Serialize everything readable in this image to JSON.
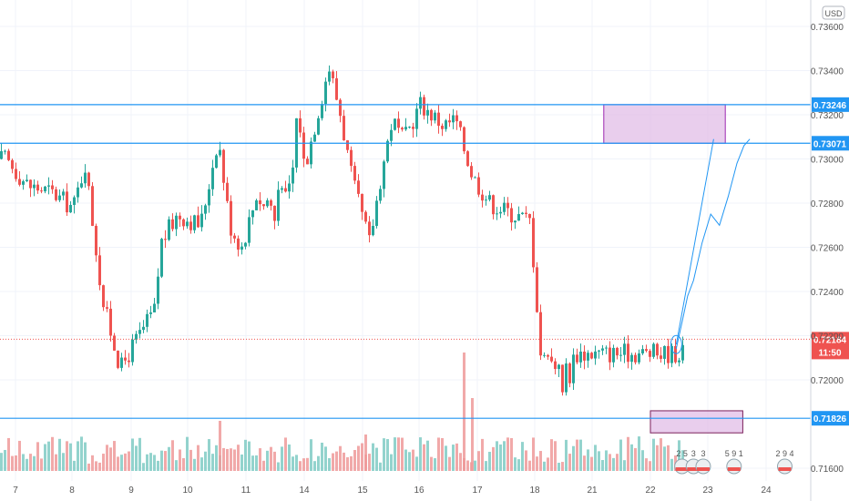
{
  "currency_badge": "USD",
  "chart_data": {
    "type": "candlestick",
    "xlabel": "",
    "ylabel": "",
    "ylim": [
      0.715,
      0.737
    ],
    "y_ticks": [
      "0.73600",
      "0.73400",
      "0.73200",
      "0.73000",
      "0.72800",
      "0.72600",
      "0.72400",
      "0.72200",
      "0.72000",
      "0.71600"
    ],
    "y_tick_values": [
      0.736,
      0.734,
      0.732,
      0.73,
      0.728,
      0.726,
      0.724,
      0.722,
      0.72,
      0.716
    ],
    "x_ticks": [
      {
        "label": "7",
        "day": 7
      },
      {
        "label": "8",
        "day": 8
      },
      {
        "label": "9",
        "day": 9
      },
      {
        "label": "10",
        "day": 10
      },
      {
        "label": "11",
        "day": 11
      },
      {
        "label": "14",
        "day": 14
      },
      {
        "label": "15",
        "day": 15
      },
      {
        "label": "16",
        "day": 16
      },
      {
        "label": "17",
        "day": 17
      },
      {
        "label": "18",
        "day": 18
      },
      {
        "label": "21",
        "day": 21
      },
      {
        "label": "22",
        "day": 22
      },
      {
        "label": "23",
        "day": 23
      },
      {
        "label": "24",
        "day": 24
      }
    ],
    "price_path": [
      [
        6.8,
        0.73
      ],
      [
        7.2,
        0.7288
      ],
      [
        7.6,
        0.7285
      ],
      [
        8.0,
        0.7278
      ],
      [
        8.2,
        0.7298
      ],
      [
        8.5,
        0.7235
      ],
      [
        8.8,
        0.7205
      ],
      [
        9.0,
        0.7215
      ],
      [
        9.4,
        0.7232
      ],
      [
        9.5,
        0.7262
      ],
      [
        9.8,
        0.7275
      ],
      [
        10.2,
        0.727
      ],
      [
        10.5,
        0.731
      ],
      [
        10.7,
        0.727
      ],
      [
        10.9,
        0.726
      ],
      [
        11.2,
        0.7275
      ],
      [
        11.5,
        0.7285
      ],
      [
        11.8,
        0.7278
      ],
      [
        12.1,
        0.7283
      ],
      [
        12.4,
        0.7272
      ],
      [
        12.7,
        0.7295
      ],
      [
        13.0,
        0.728
      ],
      [
        13.3,
        0.7292
      ],
      [
        13.5,
        0.731
      ],
      [
        13.6,
        0.7335
      ],
      [
        13.8,
        0.73
      ],
      [
        14.0,
        0.7298
      ],
      [
        14.2,
        0.732
      ],
      [
        14.4,
        0.7342
      ],
      [
        14.6,
        0.732
      ],
      [
        14.8,
        0.729
      ],
      [
        15.1,
        0.7262
      ],
      [
        15.3,
        0.7292
      ],
      [
        15.5,
        0.7318
      ],
      [
        15.7,
        0.7308
      ],
      [
        16.0,
        0.7325
      ],
      [
        16.2,
        0.732
      ],
      [
        16.4,
        0.7315
      ],
      [
        16.6,
        0.7318
      ],
      [
        16.9,
        0.7292
      ],
      [
        17.2,
        0.728
      ],
      [
        17.6,
        0.7275
      ],
      [
        17.9,
        0.7272
      ],
      [
        18.1,
        0.7228
      ],
      [
        18.3,
        0.7205
      ],
      [
        18.6,
        0.7215
      ],
      [
        18.9,
        0.7205
      ],
      [
        19.2,
        0.721
      ],
      [
        19.4,
        0.719
      ],
      [
        19.6,
        0.721
      ],
      [
        19.8,
        0.72
      ],
      [
        20.0,
        0.7212
      ]
    ],
    "volume_peak_label": "",
    "horizontal_levels": [
      {
        "label": "0.73246",
        "value": 0.73246,
        "color": "#2196f3"
      },
      {
        "label": "0.73071",
        "value": 0.73071,
        "color": "#2196f3"
      },
      {
        "label": "0.71826",
        "value": 0.71826,
        "color": "#2196f3"
      }
    ],
    "current_price": {
      "label": "0.72184",
      "value": 0.72184,
      "color": "#ef5350",
      "countdown": "11:50"
    },
    "zones": [
      {
        "name": "resistance-zone",
        "day_from": 21.2,
        "day_to": 23.3,
        "top": 0.73246,
        "bottom": 0.73071,
        "fill": "#e1bee7",
        "stroke": "#9c27b0"
      },
      {
        "name": "support-zone",
        "day_from": 22.0,
        "day_to": 23.6,
        "top": 0.7186,
        "bottom": 0.7176,
        "fill": "#e1bee7",
        "stroke": "#7b1f5a"
      }
    ],
    "trendline": {
      "from_day": 22.45,
      "from_value": 0.7216,
      "to_day": 23.1,
      "to_value": 0.7309,
      "color": "#2196f3"
    },
    "event_markers": [
      {
        "label": "2 5",
        "day": 22.55
      },
      {
        "label": "3",
        "day": 22.75
      },
      {
        "label": "3",
        "day": 22.92
      },
      {
        "label": "5 9 1",
        "day": 23.45
      },
      {
        "label": "2 9 4",
        "day": 24.32
      }
    ],
    "colors": {
      "up": "#26a69a",
      "down": "#ef5350",
      "volume_up": "#80cbc4",
      "volume_down": "#ef9a9a",
      "grid": "#f0f3fa"
    }
  }
}
